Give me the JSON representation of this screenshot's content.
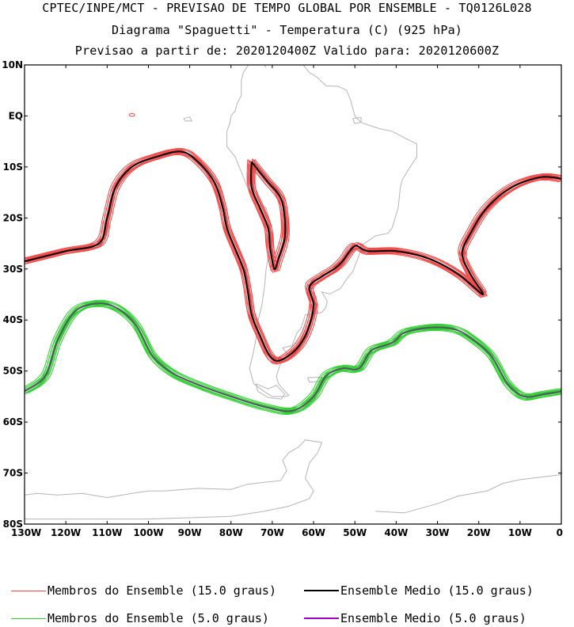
{
  "header": {
    "line1": "CPTEC/INPE/MCT - PREVISAO DE TEMPO GLOBAL POR ENSEMBLE - TQ0126L028",
    "line2": "Diagrama \"Spaguetti\" - Temperatura (C) (925 hPa)",
    "line3": "Previsao a partir de: 2020120400Z  Valido para: 2020120600Z"
  },
  "map": {
    "lon_range": [
      -130,
      0
    ],
    "lat_range": [
      -80,
      10
    ],
    "lat_ticks": [
      {
        "value": 10,
        "label": "10N"
      },
      {
        "value": 0,
        "label": "EQ"
      },
      {
        "value": -10,
        "label": "10S"
      },
      {
        "value": -20,
        "label": "20S"
      },
      {
        "value": -30,
        "label": "30S"
      },
      {
        "value": -40,
        "label": "40S"
      },
      {
        "value": -50,
        "label": "50S"
      },
      {
        "value": -60,
        "label": "60S"
      },
      {
        "value": -70,
        "label": "70S"
      },
      {
        "value": -80,
        "label": "80S"
      }
    ],
    "lon_ticks": [
      {
        "value": -130,
        "label": "130W"
      },
      {
        "value": -120,
        "label": "120W"
      },
      {
        "value": -110,
        "label": "110W"
      },
      {
        "value": -100,
        "label": "100W"
      },
      {
        "value": -90,
        "label": "90W"
      },
      {
        "value": -80,
        "label": "80W"
      },
      {
        "value": -70,
        "label": "70W"
      },
      {
        "value": -60,
        "label": "60W"
      },
      {
        "value": -50,
        "label": "50W"
      },
      {
        "value": -40,
        "label": "40W"
      },
      {
        "value": -30,
        "label": "30W"
      },
      {
        "value": -20,
        "label": "20W"
      },
      {
        "value": -10,
        "label": "10W"
      },
      {
        "value": 0,
        "label": "0"
      }
    ],
    "colors": {
      "members_15": "#f04848",
      "mean_15": "#000000",
      "members_5": "#30d030",
      "mean_5": "#a000c0",
      "coastline": "#b4b4b4"
    },
    "contour_15_mean": [
      [
        [
          -130,
          -28.5
        ],
        [
          -120,
          -26.5
        ],
        [
          -112,
          -25
        ],
        [
          -110,
          -20
        ],
        [
          -108,
          -14
        ],
        [
          -104,
          -10
        ],
        [
          -98,
          -8
        ],
        [
          -92,
          -7
        ],
        [
          -88,
          -9
        ],
        [
          -84,
          -13
        ],
        [
          -82,
          -18
        ],
        [
          -81,
          -22
        ],
        [
          -79,
          -26
        ],
        [
          -77,
          -30
        ],
        [
          -76,
          -34
        ],
        [
          -75,
          -39
        ],
        [
          -73,
          -43
        ],
        [
          -71,
          -46.5
        ],
        [
          -69,
          -48
        ],
        [
          -66,
          -47
        ],
        [
          -63,
          -44.5
        ],
        [
          -61,
          -41
        ],
        [
          -60,
          -37
        ],
        [
          -61,
          -33.5
        ],
        [
          -58,
          -31.5
        ],
        [
          -55,
          -30
        ],
        [
          -53,
          -28.5
        ],
        [
          -50,
          -25.5
        ],
        [
          -47,
          -26.5
        ],
        [
          -40,
          -26.5
        ],
        [
          -32,
          -28
        ],
        [
          -25,
          -31
        ],
        [
          -19,
          -35
        ],
        [
          -22,
          -31
        ],
        [
          -24,
          -27
        ],
        [
          -22,
          -23
        ],
        [
          -18,
          -18
        ],
        [
          -12,
          -14
        ],
        [
          -5,
          -12
        ],
        [
          0,
          -12.3
        ]
      ],
      [
        [
          -75,
          -9
        ],
        [
          -71,
          -13
        ],
        [
          -68,
          -16
        ],
        [
          -67,
          -20
        ],
        [
          -67,
          -24
        ],
        [
          -68.5,
          -28
        ],
        [
          -69.5,
          -30
        ],
        [
          -70.5,
          -26
        ],
        [
          -71,
          -22
        ],
        [
          -73,
          -18
        ],
        [
          -75,
          -14
        ],
        [
          -75,
          -9
        ]
      ]
    ],
    "contour_5_mean": [
      [
        [
          -130,
          -54
        ],
        [
          -125,
          -51
        ],
        [
          -122,
          -44
        ],
        [
          -118,
          -38.5
        ],
        [
          -113,
          -36.8
        ],
        [
          -108,
          -37.5
        ],
        [
          -103,
          -41
        ],
        [
          -99,
          -47
        ],
        [
          -94,
          -50.5
        ],
        [
          -87,
          -53
        ],
        [
          -80,
          -55
        ],
        [
          -72,
          -57
        ],
        [
          -65,
          -57.8
        ],
        [
          -60,
          -55
        ],
        [
          -57,
          -51
        ],
        [
          -53,
          -49.5
        ],
        [
          -49,
          -49.5
        ],
        [
          -46,
          -46
        ],
        [
          -41,
          -44.5
        ],
        [
          -38,
          -42.5
        ],
        [
          -32,
          -41.5
        ],
        [
          -26,
          -41.8
        ],
        [
          -22,
          -43.5
        ],
        [
          -17,
          -47
        ],
        [
          -13,
          -52.5
        ],
        [
          -9,
          -55
        ],
        [
          -4,
          -54.5
        ],
        [
          0,
          -54
        ]
      ]
    ],
    "isolated_blob": [
      -104,
      0.2
    ],
    "land": [
      [
        [
          -81,
          -3
        ],
        [
          -81,
          -6
        ],
        [
          -79,
          -8
        ],
        [
          -78,
          -10
        ],
        [
          -76,
          -14
        ],
        [
          -74.5,
          -17
        ],
        [
          -71.5,
          -18
        ],
        [
          -70.5,
          -21
        ],
        [
          -70.6,
          -26
        ],
        [
          -71.5,
          -30
        ],
        [
          -71.8,
          -33
        ],
        [
          -72.5,
          -37
        ],
        [
          -73.4,
          -40
        ],
        [
          -73.8,
          -43
        ],
        [
          -74.5,
          -46
        ],
        [
          -75.5,
          -49.5
        ],
        [
          -74.5,
          -52.5
        ],
        [
          -72,
          -54
        ],
        [
          -70,
          -55
        ],
        [
          -67,
          -55
        ],
        [
          -66,
          -54.8
        ],
        [
          -68.5,
          -52.5
        ],
        [
          -69,
          -51
        ],
        [
          -68,
          -48.5
        ],
        [
          -66,
          -47
        ],
        [
          -67.5,
          -45.5
        ],
        [
          -65.2,
          -45
        ],
        [
          -64,
          -42.5
        ],
        [
          -63,
          -41.5
        ],
        [
          -62,
          -39
        ],
        [
          -58,
          -38.5
        ],
        [
          -57,
          -37.5
        ],
        [
          -56.7,
          -36.3
        ],
        [
          -58,
          -34.5
        ],
        [
          -56,
          -34.9
        ],
        [
          -53.5,
          -33.8
        ],
        [
          -52,
          -32
        ],
        [
          -50.5,
          -30.5
        ],
        [
          -48.6,
          -26.5
        ],
        [
          -48.6,
          -25.5
        ],
        [
          -45,
          -23.5
        ],
        [
          -42,
          -23
        ],
        [
          -41,
          -22
        ],
        [
          -39.5,
          -18
        ],
        [
          -39,
          -14
        ],
        [
          -38.5,
          -12.5
        ],
        [
          -37,
          -10.5
        ],
        [
          -35,
          -8
        ],
        [
          -35,
          -5.5
        ],
        [
          -37.5,
          -4.5
        ],
        [
          -41,
          -3
        ],
        [
          -44,
          -2.5
        ],
        [
          -48.5,
          -1.3
        ],
        [
          -50,
          0
        ],
        [
          -51,
          3
        ],
        [
          -52,
          5
        ],
        [
          -54,
          5.8
        ],
        [
          -57,
          5.9
        ],
        [
          -59,
          7.5
        ],
        [
          -61,
          8.5
        ],
        [
          -62.5,
          10
        ],
        [
          -65,
          10
        ],
        [
          -67,
          10.5
        ],
        [
          -68,
          10.5
        ],
        [
          -70,
          11.5
        ],
        [
          -72,
          11.5
        ],
        [
          -72,
          10
        ],
        [
          -71.5,
          9.5
        ],
        [
          -73,
          11
        ],
        [
          -75,
          11
        ],
        [
          -77,
          8.5
        ],
        [
          -77.5,
          7
        ],
        [
          -77.5,
          4
        ],
        [
          -78.5,
          2.5
        ],
        [
          -79,
          1
        ],
        [
          -80,
          0
        ],
        [
          -80.3,
          -1.5
        ],
        [
          -81,
          -3
        ]
      ],
      [
        [
          -74,
          -52.5
        ],
        [
          -71,
          -53.5
        ],
        [
          -69,
          -52.8
        ],
        [
          -67,
          -54.5
        ],
        [
          -67.8,
          -55.5
        ],
        [
          -71,
          -55.2
        ],
        [
          -73.5,
          -54
        ],
        [
          -74,
          -52.5
        ]
      ],
      [
        [
          -61.5,
          -51.3
        ],
        [
          -58,
          -51.2
        ],
        [
          -57.8,
          -52
        ],
        [
          -61,
          -52.2
        ],
        [
          -61.5,
          -51.3
        ]
      ],
      [
        [
          -91.5,
          -0.5
        ],
        [
          -90,
          -0.2
        ],
        [
          -89.5,
          -1
        ],
        [
          -91,
          -1
        ],
        [
          -91.5,
          -0.5
        ]
      ],
      [
        [
          -50.5,
          -0.5
        ],
        [
          -48.5,
          -0.3
        ],
        [
          -48.5,
          -1.2
        ],
        [
          -50,
          -1.5
        ],
        [
          -50.5,
          -0.5
        ]
      ],
      [
        [
          -58,
          -64
        ],
        [
          -62,
          -63.5
        ],
        [
          -63.5,
          -64.8
        ],
        [
          -66,
          -66
        ],
        [
          -67.5,
          -67.5
        ],
        [
          -66.5,
          -69.5
        ],
        [
          -68,
          -71.5
        ],
        [
          -72,
          -71.8
        ],
        [
          -76,
          -72.2
        ],
        [
          -80,
          -73.2
        ],
        [
          -88,
          -73
        ],
        [
          -96,
          -73.5
        ],
        [
          -100,
          -73.5
        ],
        [
          -104,
          -74
        ],
        [
          -110,
          -74.8
        ],
        [
          -116,
          -74
        ],
        [
          -122,
          -74.3
        ],
        [
          -127,
          -74
        ],
        [
          -130,
          -74.3
        ]
      ],
      [
        [
          -58,
          -64
        ],
        [
          -59,
          -66
        ],
        [
          -61,
          -68
        ],
        [
          -62,
          -71
        ],
        [
          -60,
          -73.5
        ],
        [
          -61,
          -75
        ],
        [
          -66,
          -76.5
        ],
        [
          -72,
          -77.5
        ],
        [
          -80,
          -78.5
        ]
      ],
      [
        [
          -45,
          -77.5
        ],
        [
          -38,
          -77.8
        ],
        [
          -30,
          -76
        ],
        [
          -25,
          -74.5
        ],
        [
          -18,
          -73.5
        ],
        [
          -14,
          -72
        ],
        [
          -10,
          -71.3
        ],
        [
          -5,
          -70.8
        ],
        [
          0,
          -70.3
        ]
      ],
      [
        [
          -80,
          -78.5
        ],
        [
          -100,
          -79
        ],
        [
          -130,
          -79
        ]
      ]
    ]
  },
  "legend": {
    "members_15": "Membros do Ensemble (15.0 graus)",
    "mean_15": "Ensemble Medio (15.0 graus)",
    "members_5": "Membros do Ensemble (5.0 graus)",
    "mean_5": "Ensemble Medio (5.0 graus)"
  }
}
